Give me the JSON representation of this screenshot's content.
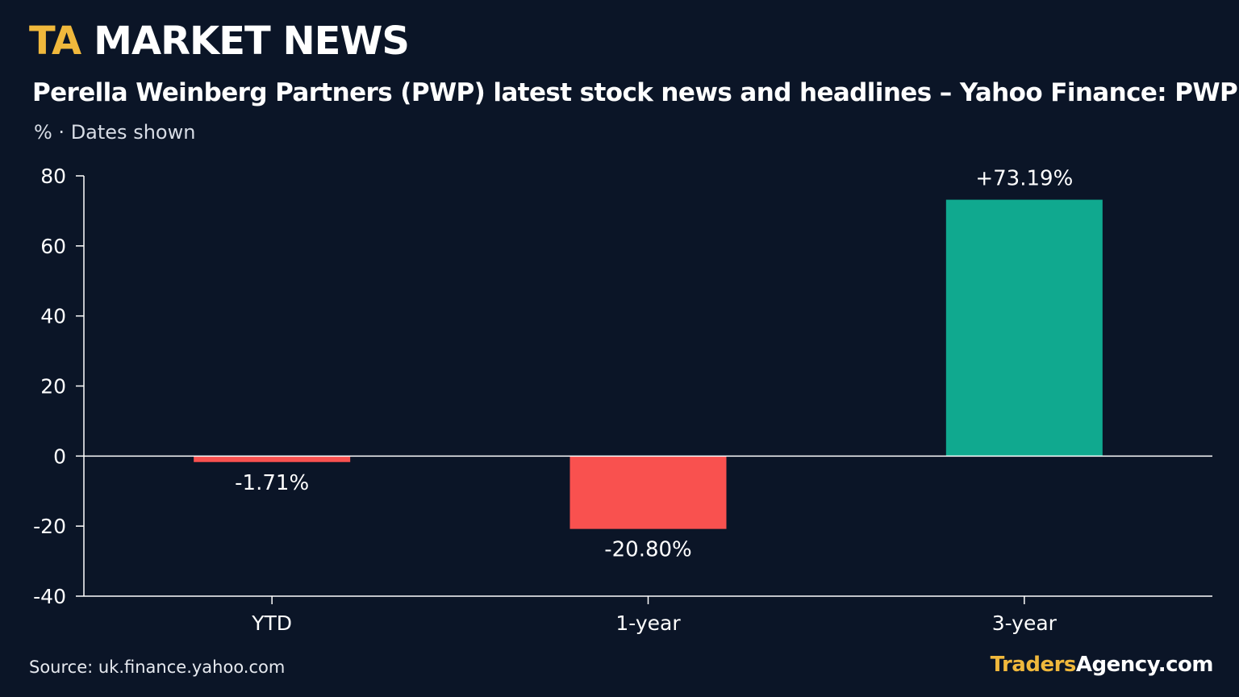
{
  "header": {
    "brand_prefix": "TA",
    "brand_name": "MARKET NEWS",
    "headline": "Perella Weinberg Partners (PWP) latest stock news and headlines – Yahoo Finance: PWP",
    "subtitle": "% · Dates shown"
  },
  "footer": {
    "source": "Source: uk.finance.yahoo.com",
    "brand_part1": "Traders",
    "brand_part2": "Agency.com"
  },
  "colors": {
    "background": "#0b1527",
    "negative": "#f9514f",
    "positive": "#10a98f",
    "axis": "#ffffff",
    "accent": "#f0b83c"
  },
  "chart_data": {
    "type": "bar",
    "categories": [
      "YTD",
      "1-year",
      "3-year"
    ],
    "values": [
      -1.71,
      -20.8,
      73.19
    ],
    "data_labels": [
      "-1.71%",
      "-20.80%",
      "+73.19%"
    ],
    "ylim": [
      -40,
      80
    ],
    "yticks": [
      80,
      60,
      40,
      20,
      0,
      -20,
      -40
    ],
    "grid": false,
    "legend": "none",
    "xlabel": "",
    "ylabel": ""
  }
}
